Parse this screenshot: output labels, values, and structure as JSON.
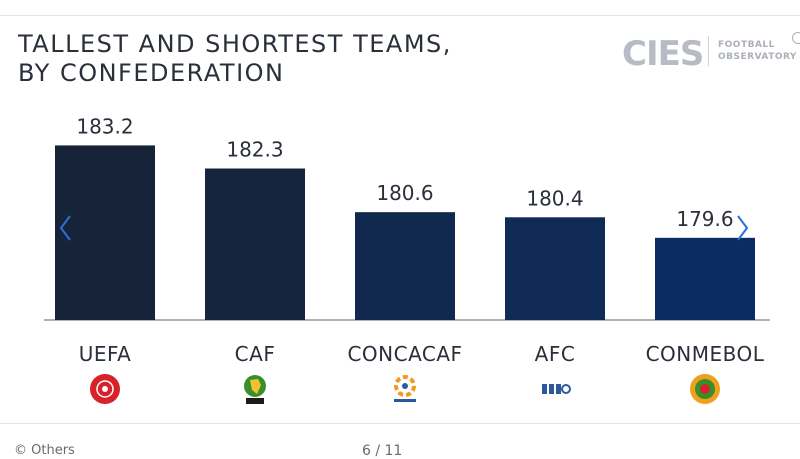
{
  "title_lines": [
    "TALLEST AND SHORTEST TEAMS,",
    "BY CONFEDERATION"
  ],
  "logo": {
    "word": "CIES",
    "sub_line1": "FOOTBALL",
    "sub_line2": "OBSERVATORY"
  },
  "chart_data": {
    "type": "bar",
    "title": "TALLEST AND SHORTEST TEAMS, BY CONFEDERATION",
    "categories": [
      "UEFA",
      "CAF",
      "CONCACAF",
      "AFC",
      "CONMEBOL"
    ],
    "values": [
      183.2,
      182.3,
      180.6,
      180.4,
      179.6
    ],
    "value_labels": [
      "183.2",
      "182.3",
      "180.6",
      "180.4",
      "179.6"
    ],
    "xlabel": "",
    "ylabel": "",
    "ylim": [
      176.4,
      183.8
    ],
    "grid": false,
    "colors": [
      "#172338",
      "#16253d",
      "#11294f",
      "#0f2a55",
      "#0b2c62"
    ]
  },
  "emblems": [
    {
      "name": "uefa-emblem-icon",
      "text": "UEFA"
    },
    {
      "name": "caf-emblem-icon",
      "text": "CAF"
    },
    {
      "name": "concacaf-emblem-icon",
      "text": "CONCACAF"
    },
    {
      "name": "afc-emblem-icon",
      "text": "AFC"
    },
    {
      "name": "conmebol-emblem-icon",
      "text": ""
    }
  ],
  "nav": {
    "prev_icon": "chevron-left-icon",
    "next_icon": "chevron-right-icon",
    "accent": "#2a6fdb"
  },
  "footer": {
    "credit": "© Others",
    "page_indicator": "6 / 11"
  }
}
